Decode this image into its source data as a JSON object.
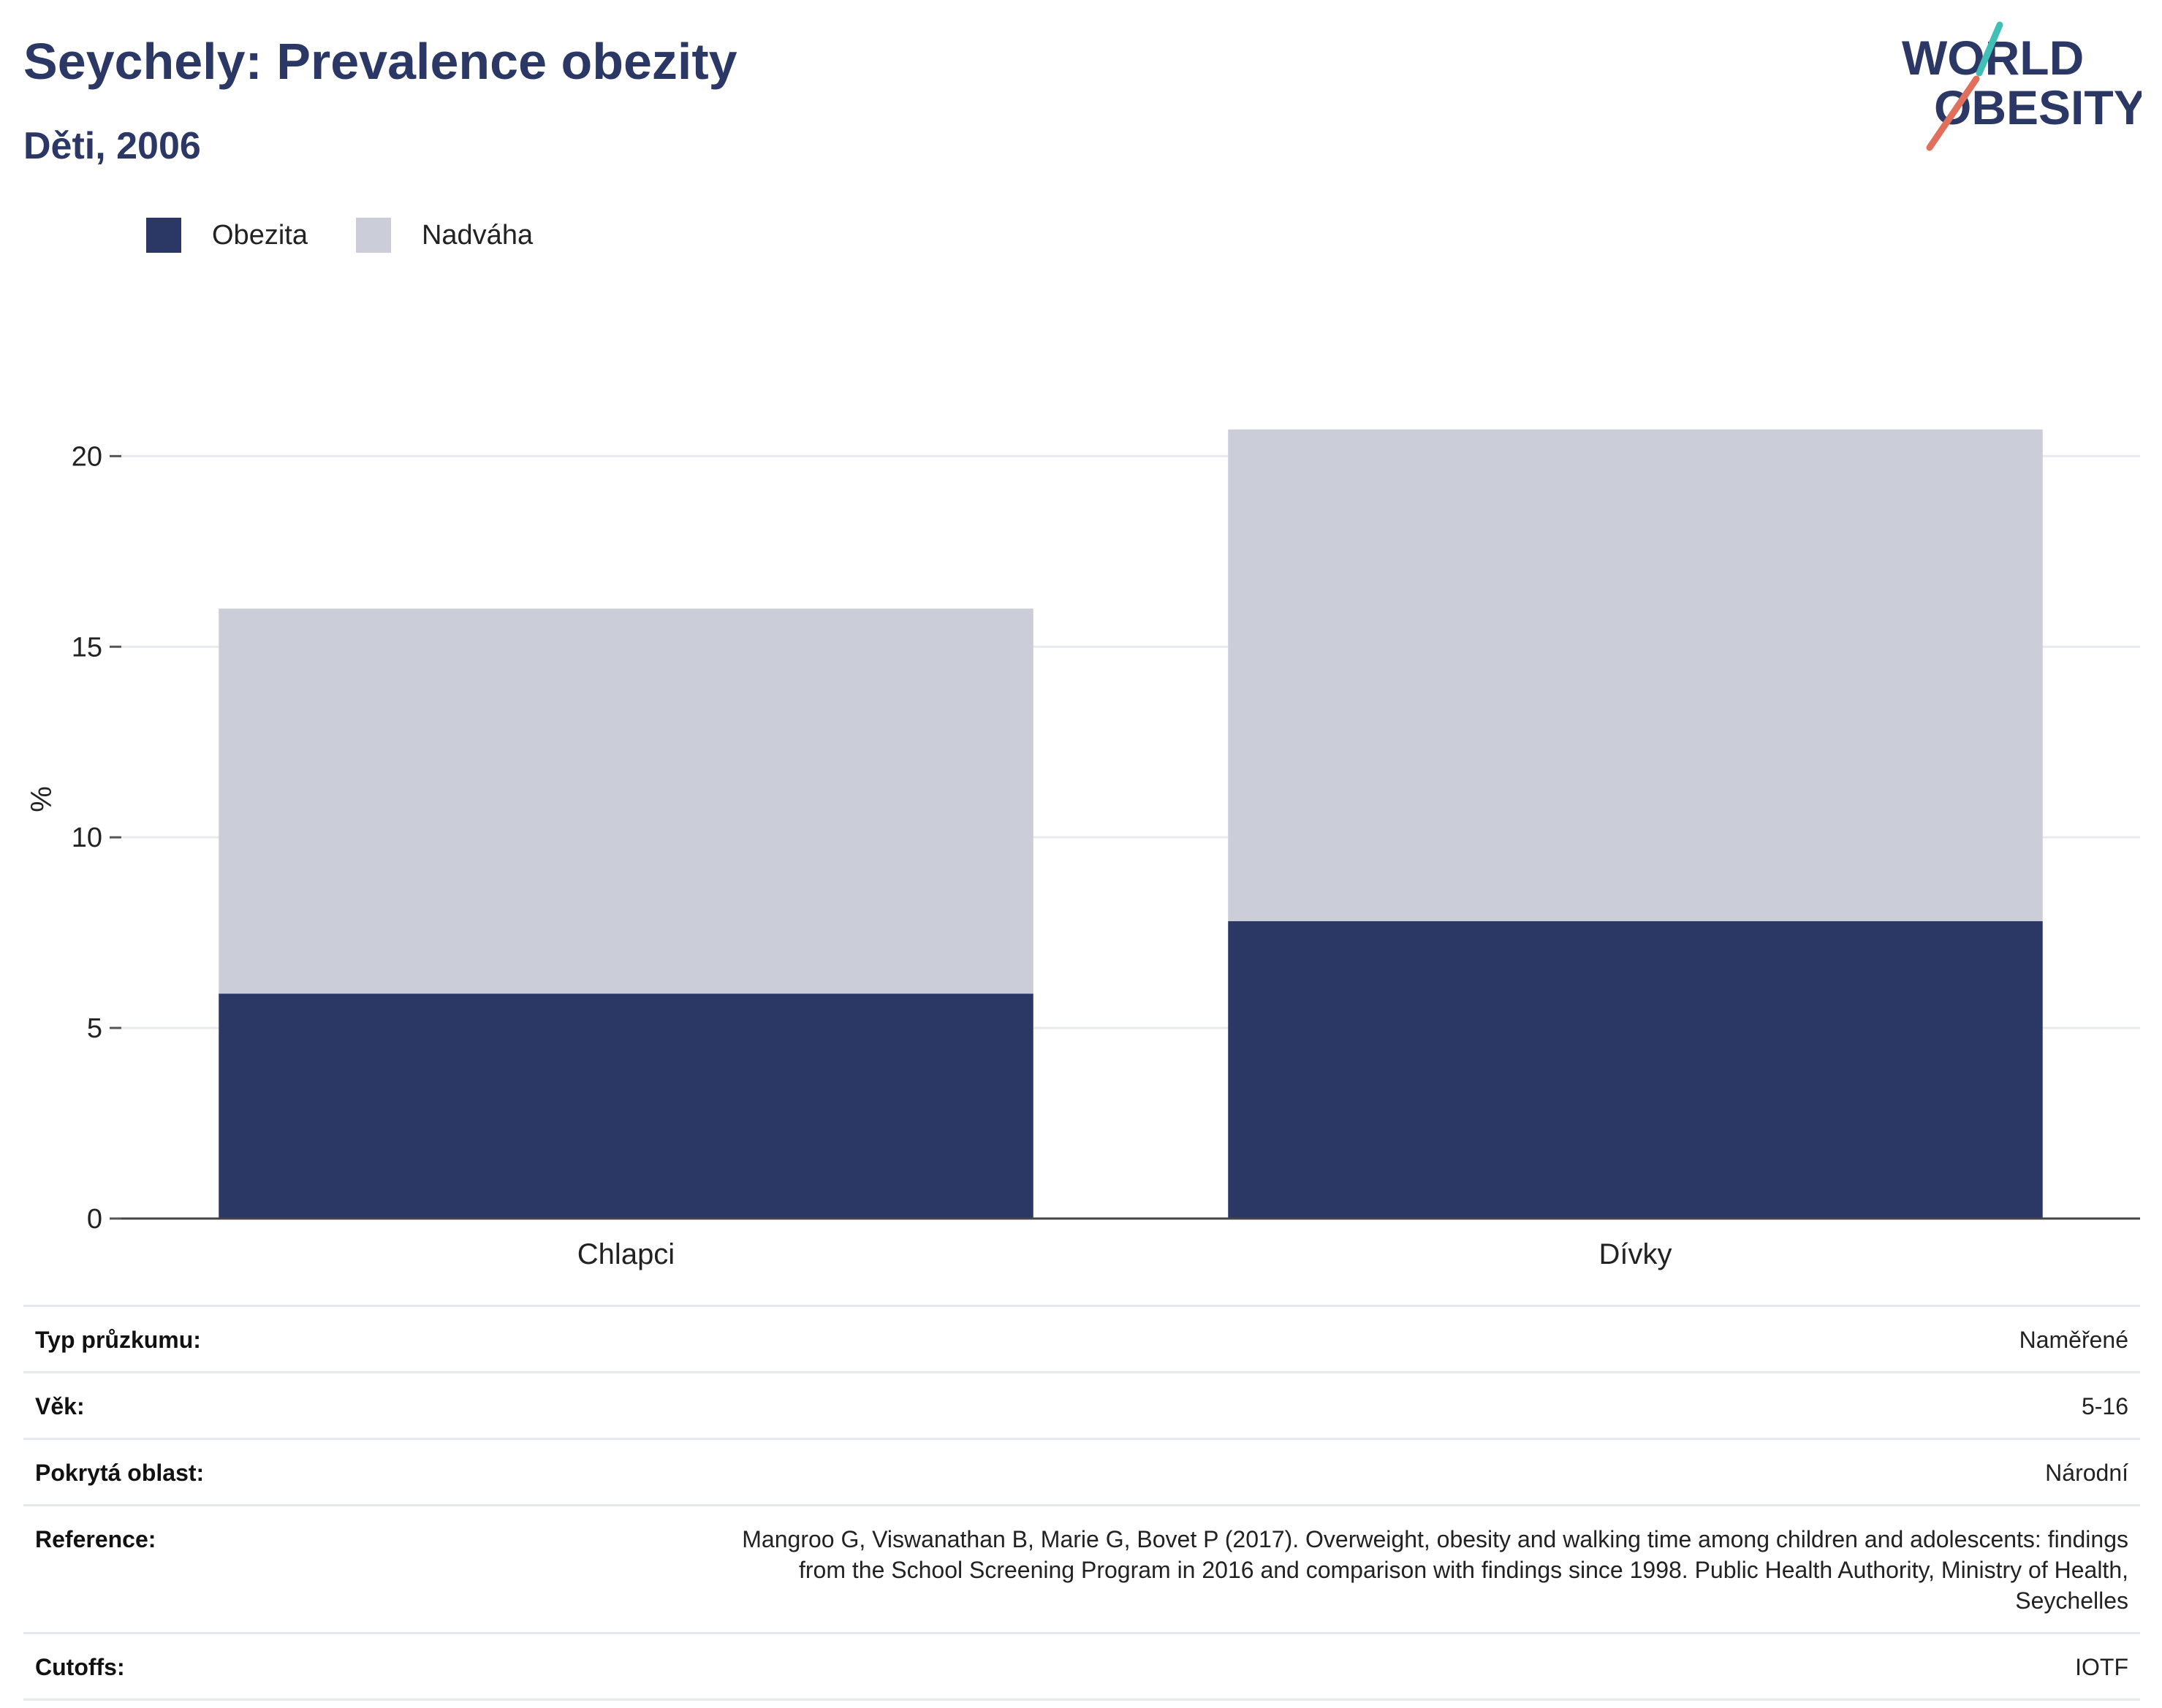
{
  "header": {
    "title": "Seychely: Prevalence obezity",
    "subtitle": "Děti, 2006",
    "logo_text": [
      "WORLD",
      "OBESITY"
    ]
  },
  "legend": [
    {
      "label": "Obezita",
      "color": "#2b3765"
    },
    {
      "label": "Nadváha",
      "color": "#cbcdd8"
    }
  ],
  "chart_data": {
    "type": "bar",
    "stacked": true,
    "categories": [
      "Chlapci",
      "Dívky"
    ],
    "series": [
      {
        "name": "Obezita",
        "color": "#2b3765",
        "values": [
          5.9,
          7.8
        ]
      },
      {
        "name": "Nadváha",
        "color": "#cbcdd8",
        "values": [
          10.1,
          12.9
        ]
      }
    ],
    "title": "",
    "xlabel": "",
    "ylabel": "%",
    "ylim": [
      0,
      22
    ],
    "yticks": [
      0,
      5,
      10,
      15,
      20
    ],
    "grid": true,
    "legend_position": "top-left"
  },
  "info": [
    {
      "key": "Typ průzkumu:",
      "value": "Naměřené"
    },
    {
      "key": "Věk:",
      "value": "5-16"
    },
    {
      "key": "Pokrytá oblast:",
      "value": "Národní"
    },
    {
      "key": "Reference:",
      "value_lines": [
        "Mangroo G, Viswanathan B, Marie G, Bovet P (2017). Overweight, obesity and walking time among children and adolescents: findings",
        "from the School Screening Program in 2016 and comparison with findings since 1998. Public Health Authority, Ministry of Health,",
        "Seychelles"
      ]
    },
    {
      "key": "Cutoffs:",
      "value": "IOTF"
    }
  ]
}
